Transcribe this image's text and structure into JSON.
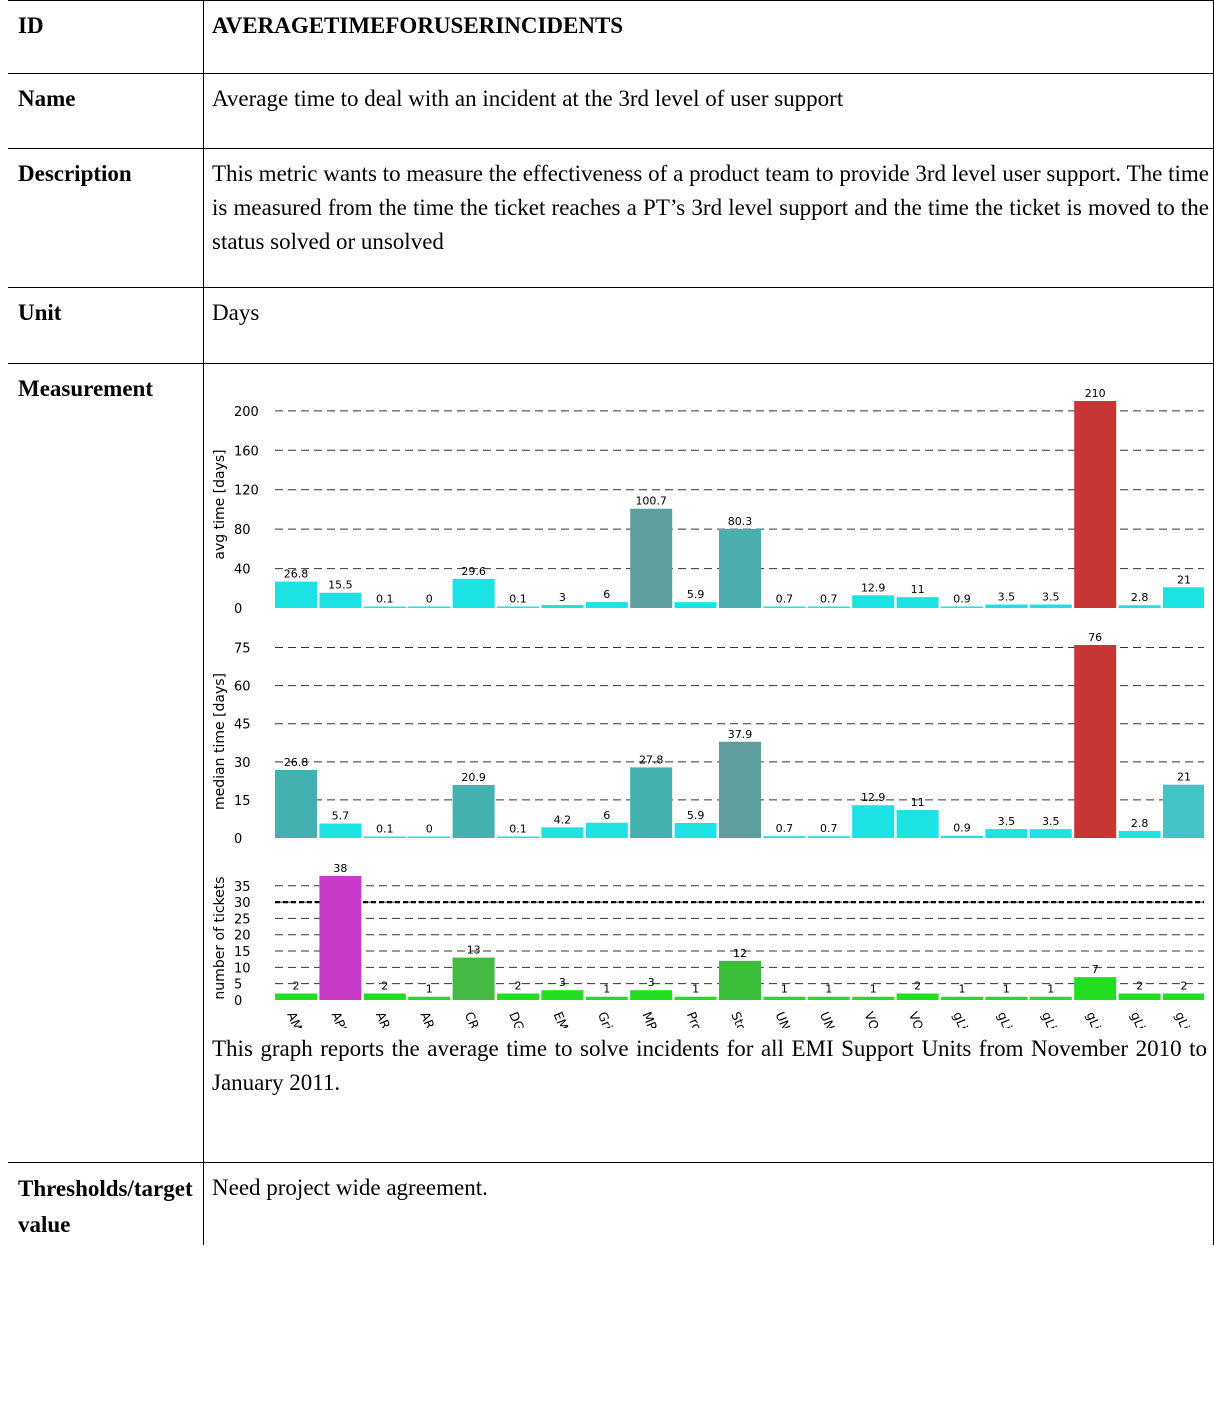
{
  "rows": {
    "id": {
      "label": "ID",
      "value": "AVERAGETIMEFORUSERINCIDENTS"
    },
    "name": {
      "label": "Name",
      "value": "Average time to deal with an incident at the 3rd level of user support"
    },
    "description": {
      "label": "Description",
      "value": "This metric wants to measure the effectiveness of a product team to provide 3rd level user support. The time is measured from the time the ticket reaches a PT’s 3rd level support and the time the ticket is moved to the status solved or unsolved"
    },
    "unit": {
      "label": "Unit",
      "value": "Days"
    },
    "measurement": {
      "label": "Measurement",
      "caption": "This graph reports the average time to solve incidents for all EMI Support Units from November 2010 to January 2011."
    },
    "thresholds": {
      "label": "Thresholds/target value",
      "value": "Need project wide agreement."
    }
  },
  "chart_data": [
    {
      "type": "bar",
      "ylabel": "avg time [days]",
      "yticks": [
        0,
        40,
        80,
        120,
        160,
        200
      ],
      "ylim": [
        0,
        210
      ],
      "grid": true,
      "categories": [
        "AMGA",
        "APEL",
        "ARC",
        "ARGUS",
        "CREAM-BLAH",
        "DGAS",
        "EMI",
        "Gridsite",
        "MPI",
        "Proxyrenewal",
        "StoRM",
        "UNICORE-Client",
        "UNICORE-Server",
        "VOMS",
        "VOMS-Admin",
        "gLite Hydra",
        "gLite Identity Security",
        "gLite Java Security",
        "gLite Security",
        "gLite WMS",
        "gLite Yaim Core"
      ],
      "values": [
        26.8,
        15.5,
        0.1,
        0,
        29.6,
        0.1,
        3,
        6,
        100.7,
        5.9,
        80.3,
        0.7,
        0.7,
        12.9,
        11,
        0.9,
        3.5,
        3.5,
        210,
        2.8,
        21
      ],
      "colors": [
        "#1de2e4",
        "#1de2e4",
        "#1de2e4",
        "#1de2e4",
        "#1de2e4",
        "#1de2e4",
        "#1de2e4",
        "#1de2e4",
        "#5f9e9e",
        "#1de2e4",
        "#4aaeae",
        "#1de2e4",
        "#1de2e4",
        "#1de2e4",
        "#1de2e4",
        "#1de2e4",
        "#1de2e4",
        "#1de2e4",
        "#c83535",
        "#1de2e4",
        "#1de2e4"
      ],
      "labels": [
        "26.8",
        "15.5",
        "0.1",
        "0",
        "29.6",
        "0.1",
        "3",
        "6",
        "100.7",
        "5.9",
        "80.3",
        "0.7",
        "0.7",
        "12.9",
        "11",
        "0.9",
        "3.5",
        "3.5",
        "210",
        "2.8",
        "21"
      ]
    },
    {
      "type": "bar",
      "ylabel": "median time [days]",
      "yticks": [
        0,
        15,
        30,
        45,
        60,
        75
      ],
      "ylim": [
        0,
        76
      ],
      "grid": true,
      "categories": [
        "AMGA",
        "APEL",
        "ARC",
        "ARGUS",
        "CREAM-BLAH",
        "DGAS",
        "EMI",
        "Gridsite",
        "MPI",
        "Proxyrenewal",
        "StoRM",
        "UNICORE-Client",
        "UNICORE-Server",
        "VOMS",
        "VOMS-Admin",
        "gLite Hydra",
        "gLite Identity Security",
        "gLite Java Security",
        "gLite Security",
        "gLite WMS",
        "gLite Yaim Core"
      ],
      "values": [
        26.8,
        5.7,
        0.1,
        0,
        20.9,
        0.1,
        4.2,
        6,
        27.8,
        5.9,
        37.9,
        0.7,
        0.7,
        12.9,
        11,
        0.9,
        3.5,
        3.5,
        76,
        2.8,
        21
      ],
      "colors": [
        "#44b1b1",
        "#1de2e4",
        "#1de2e4",
        "#1de2e4",
        "#44b1b1",
        "#1de2e4",
        "#1de2e4",
        "#1de2e4",
        "#44b1b1",
        "#1de2e4",
        "#5f9e9e",
        "#1de2e4",
        "#1de2e4",
        "#1de2e4",
        "#1de2e4",
        "#1de2e4",
        "#1de2e4",
        "#1de2e4",
        "#c83535",
        "#1de2e4",
        "#44c4c4"
      ],
      "labels": [
        "26.8",
        "5.7",
        "0.1",
        "0",
        "20.9",
        "0.1",
        "4.2",
        "6",
        "27.8",
        "5.9",
        "37.9",
        "0.7",
        "0.7",
        "12.9",
        "11",
        "0.9",
        "3.5",
        "3.5",
        "76",
        "2.8",
        "21"
      ]
    },
    {
      "type": "bar",
      "ylabel": "number of tickets",
      "yticks": [
        0,
        5,
        10,
        15,
        20,
        25,
        30,
        35
      ],
      "ylim": [
        0,
        38
      ],
      "grid": true,
      "threshold": 30,
      "categories": [
        "AMGA",
        "APEL",
        "ARC",
        "ARGUS",
        "CREAM-BLAH",
        "DGAS",
        "EMI",
        "Gridsite",
        "MPI",
        "Proxyrenewal",
        "StoRM",
        "UNICORE-Client",
        "UNICORE-Server",
        "VOMS",
        "VOMS-Admin",
        "gLite Hydra",
        "gLite Identity Security",
        "gLite Java Security",
        "gLite Security",
        "gLite WMS",
        "gLite Yaim Core"
      ],
      "values": [
        2,
        38,
        2,
        1,
        13,
        2,
        3,
        1,
        3,
        1,
        12,
        1,
        1,
        1,
        2,
        1,
        1,
        1,
        7,
        2,
        2
      ],
      "colors": [
        "#22dd22",
        "#c83ac8",
        "#22dd22",
        "#22dd22",
        "#44b944",
        "#22dd22",
        "#22dd22",
        "#22dd22",
        "#22dd22",
        "#22dd22",
        "#3bbf3b",
        "#22dd22",
        "#22dd22",
        "#22dd22",
        "#22dd22",
        "#22dd22",
        "#22dd22",
        "#22dd22",
        "#22dd22",
        "#22dd22",
        "#22dd22"
      ],
      "labels": [
        "2",
        "38",
        "2",
        "1",
        "13",
        "2",
        "3",
        "1",
        "3",
        "1",
        "12",
        "1",
        "1",
        "1",
        "2",
        "1",
        "1",
        "1",
        "7",
        "2",
        "2"
      ]
    }
  ]
}
